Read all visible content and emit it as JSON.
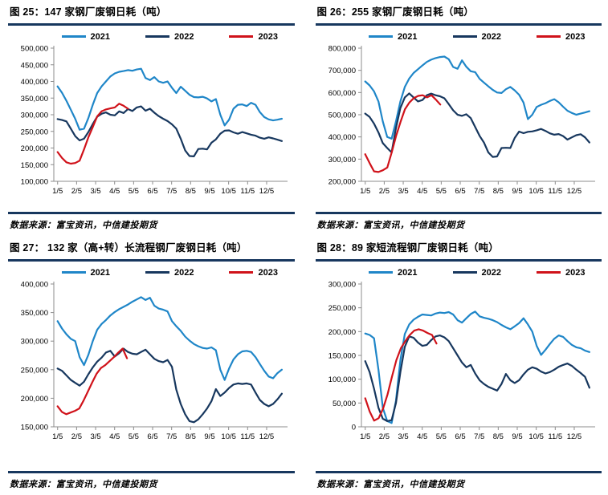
{
  "palette": {
    "y2021": "#1F86C8",
    "y2022": "#17375E",
    "y2023": "#D0121A",
    "rule": "#17375E",
    "axis": "#8C8C8C",
    "text": "#000000"
  },
  "chart_data": [
    {
      "id": "fig-25",
      "title": "图 25：147 家钢厂废钢日耗（吨）",
      "source": "数据来源：富宝资讯，中信建投期货",
      "type": "line",
      "grid": false,
      "legend_position": "top",
      "x_tick_labels": [
        "1/5",
        "2/5",
        "3/5",
        "4/5",
        "5/5",
        "6/5",
        "7/5",
        "8/5",
        "9/5",
        "10/5",
        "11/5",
        "12/5"
      ],
      "x_range": [
        0.8,
        13.1
      ],
      "ylim": [
        100000,
        500000
      ],
      "ytick_step": 50000,
      "series": [
        {
          "name": "2021",
          "color_key": "y2021",
          "x0": 1,
          "x1": 12.8,
          "values": [
            385000,
            366000,
            342000,
            315000,
            288000,
            255000,
            258000,
            290000,
            330000,
            365000,
            385000,
            400000,
            415000,
            424000,
            429000,
            431000,
            434000,
            432000,
            436000,
            438000,
            410000,
            404000,
            413000,
            400000,
            396000,
            400000,
            381000,
            365000,
            384000,
            372000,
            360000,
            353000,
            352000,
            354000,
            349000,
            340000,
            347000,
            300000,
            268000,
            285000,
            318000,
            330000,
            331000,
            326000,
            336000,
            330000,
            308000,
            293000,
            286000,
            283000,
            285000,
            288000
          ]
        },
        {
          "name": "2022",
          "color_key": "y2022",
          "x0": 1,
          "x1": 12.8,
          "values": [
            287000,
            284000,
            280000,
            258000,
            236000,
            223000,
            228000,
            248000,
            272000,
            294000,
            303000,
            307000,
            300000,
            298000,
            310000,
            305000,
            317000,
            311000,
            322000,
            325000,
            312000,
            318000,
            306000,
            296000,
            288000,
            281000,
            271000,
            258000,
            228000,
            193000,
            176000,
            175000,
            197000,
            198000,
            196000,
            216000,
            226000,
            243000,
            252000,
            253000,
            247000,
            243000,
            248000,
            244000,
            240000,
            237000,
            231000,
            228000,
            232000,
            229000,
            225000,
            221000
          ]
        },
        {
          "name": "2023",
          "color_key": "y2023",
          "x0": 1,
          "x1": 4.7,
          "values": [
            188000,
            170000,
            157000,
            153000,
            155000,
            162000,
            196000,
            232000,
            263000,
            295000,
            310000,
            316000,
            319000,
            322000,
            333000,
            327000,
            318000
          ]
        }
      ]
    },
    {
      "id": "fig-26",
      "title": "图 26：255 家钢厂废钢日耗（吨）",
      "source": "数据来源：富宝资讯，中信建投期货",
      "type": "line",
      "grid": false,
      "legend_position": "top",
      "x_tick_labels": [
        "1/5",
        "2/5",
        "3/5",
        "4/5",
        "5/5",
        "6/5",
        "7/5",
        "8/5",
        "9/5",
        "10/5",
        "11/5",
        "12/5"
      ],
      "x_range": [
        0.8,
        13.1
      ],
      "ylim": [
        200000,
        800000
      ],
      "ytick_step": 100000,
      "series": [
        {
          "name": "2021",
          "color_key": "y2021",
          "x0": 1,
          "x1": 12.8,
          "values": [
            650000,
            632000,
            605000,
            560000,
            470000,
            400000,
            392000,
            470000,
            560000,
            625000,
            663000,
            688000,
            705000,
            722000,
            738000,
            748000,
            755000,
            760000,
            762000,
            750000,
            715000,
            707000,
            745000,
            716000,
            696000,
            692000,
            662000,
            645000,
            628000,
            612000,
            600000,
            598000,
            615000,
            625000,
            610000,
            590000,
            555000,
            480000,
            500000,
            535000,
            545000,
            552000,
            562000,
            570000,
            556000,
            536000,
            518000,
            508000,
            500000,
            505000,
            510000,
            516000
          ]
        },
        {
          "name": "2022",
          "color_key": "y2022",
          "x0": 1,
          "x1": 12.8,
          "values": [
            505000,
            490000,
            460000,
            420000,
            372000,
            350000,
            330000,
            440000,
            530000,
            578000,
            596000,
            578000,
            560000,
            566000,
            588000,
            595000,
            588000,
            583000,
            574000,
            548000,
            520000,
            500000,
            495000,
            502000,
            485000,
            445000,
            405000,
            375000,
            330000,
            310000,
            312000,
            350000,
            351000,
            350000,
            395000,
            424000,
            417000,
            423000,
            425000,
            430000,
            436000,
            427000,
            416000,
            410000,
            413000,
            404000,
            388000,
            398000,
            408000,
            412000,
            398000,
            375000
          ]
        },
        {
          "name": "2023",
          "color_key": "y2023",
          "x0": 1,
          "x1": 4.95,
          "values": [
            322000,
            282000,
            245000,
            242000,
            250000,
            262000,
            330000,
            405000,
            468000,
            525000,
            555000,
            575000,
            585000,
            588000,
            578000,
            588000,
            568000,
            546000
          ]
        }
      ]
    },
    {
      "id": "fig-27",
      "title": "图 27： 132 家（高+转）长流程钢厂废钢日耗（吨）",
      "source": "数据来源：富宝资讯，中信建投期货",
      "type": "line",
      "grid": false,
      "legend_position": "top",
      "x_tick_labels": [
        "1/5",
        "2/5",
        "3/5",
        "4/5",
        "5/5",
        "6/5",
        "7/5",
        "8/5",
        "9/5",
        "10/5",
        "11/5",
        "12/5"
      ],
      "x_range": [
        0.8,
        13.1
      ],
      "ylim": [
        150000,
        400000
      ],
      "ytick_step": 50000,
      "series": [
        {
          "name": "2021",
          "color_key": "y2021",
          "x0": 1,
          "x1": 12.8,
          "values": [
            335000,
            322000,
            312000,
            304000,
            300000,
            272000,
            258000,
            276000,
            300000,
            320000,
            330000,
            337000,
            345000,
            351000,
            356000,
            360000,
            364000,
            369000,
            373000,
            377000,
            372000,
            376000,
            362000,
            357000,
            355000,
            352000,
            335000,
            326000,
            318000,
            308000,
            301000,
            295000,
            291000,
            288000,
            287000,
            289000,
            284000,
            250000,
            232000,
            252000,
            268000,
            277000,
            282000,
            283000,
            281000,
            272000,
            260000,
            248000,
            238000,
            235000,
            244000,
            250000
          ]
        },
        {
          "name": "2022",
          "color_key": "y2022",
          "x0": 1,
          "x1": 12.8,
          "values": [
            252000,
            248000,
            240000,
            232000,
            227000,
            222000,
            229000,
            242000,
            254000,
            264000,
            271000,
            280000,
            283000,
            273000,
            279000,
            287000,
            281000,
            278000,
            277000,
            281000,
            285000,
            277000,
            269000,
            265000,
            263000,
            267000,
            255000,
            215000,
            190000,
            172000,
            160000,
            158000,
            163000,
            172000,
            182000,
            195000,
            216000,
            204000,
            210000,
            218000,
            224000,
            226000,
            225000,
            226000,
            224000,
            210000,
            197000,
            190000,
            186000,
            190000,
            198000,
            208000
          ]
        },
        {
          "name": "2023",
          "color_key": "y2023",
          "x0": 1,
          "x1": 4.65,
          "values": [
            186000,
            176000,
            172000,
            175000,
            178000,
            182000,
            196000,
            212000,
            228000,
            243000,
            253000,
            258000,
            265000,
            272000,
            280000,
            287000,
            270000
          ]
        }
      ]
    },
    {
      "id": "fig-28",
      "title": "图 28：89 家短流程钢厂废钢日耗（吨）",
      "source": "数据来源：富宝资讯，中信建投期货",
      "type": "line",
      "grid": false,
      "legend_position": "top",
      "x_tick_labels": [
        "1/5",
        "2/5",
        "3/5",
        "4/5",
        "5/5",
        "6/5",
        "7/5",
        "8/5",
        "9/5",
        "10/5",
        "11/5",
        "12/5"
      ],
      "x_range": [
        0.8,
        13.1
      ],
      "ylim": [
        0,
        300000
      ],
      "ytick_step": 50000,
      "series": [
        {
          "name": "2021",
          "color_key": "y2021",
          "x0": 1,
          "x1": 12.8,
          "values": [
            196000,
            193000,
            186000,
            120000,
            40000,
            12000,
            8000,
            55000,
            140000,
            195000,
            215000,
            225000,
            231000,
            236000,
            235000,
            234000,
            238000,
            240000,
            239000,
            241000,
            236000,
            224000,
            219000,
            228000,
            237000,
            242000,
            232000,
            229000,
            227000,
            224000,
            220000,
            214000,
            209000,
            205000,
            211000,
            218000,
            228000,
            215000,
            200000,
            170000,
            151000,
            162000,
            174000,
            185000,
            192000,
            189000,
            180000,
            172000,
            167000,
            165000,
            160000,
            157000
          ]
        },
        {
          "name": "2022",
          "color_key": "y2022",
          "x0": 1,
          "x1": 12.8,
          "values": [
            138000,
            115000,
            80000,
            40000,
            17000,
            12000,
            14000,
            50000,
            115000,
            168000,
            190000,
            187000,
            177000,
            170000,
            172000,
            182000,
            190000,
            192000,
            188000,
            180000,
            165000,
            150000,
            135000,
            125000,
            130000,
            112000,
            98000,
            90000,
            84000,
            80000,
            76000,
            90000,
            111000,
            98000,
            92000,
            98000,
            110000,
            120000,
            125000,
            122000,
            116000,
            112000,
            115000,
            120000,
            126000,
            130000,
            133000,
            128000,
            120000,
            113000,
            105000,
            82000
          ]
        },
        {
          "name": "2023",
          "color_key": "y2023",
          "x0": 1,
          "x1": 4.75,
          "values": [
            60000,
            32000,
            13000,
            18000,
            38000,
            68000,
            105000,
            140000,
            165000,
            180000,
            193000,
            202000,
            205000,
            202000,
            197000,
            193000,
            175000
          ]
        }
      ]
    }
  ]
}
